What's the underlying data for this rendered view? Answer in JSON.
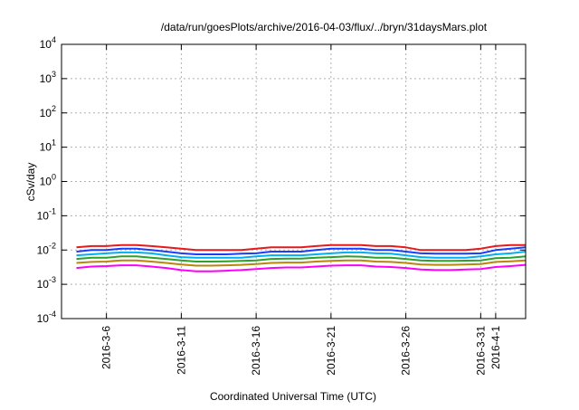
{
  "chart_data": {
    "type": "line",
    "title": "/data/run/goesPlots/archive/2016-04-03/flux/../bryn/31daysMars.plot",
    "xlabel": "Coordinated Universal Time (UTC)",
    "ylabel": "cSv/day",
    "y_scale": "log",
    "ylim": [
      0.0001,
      10000
    ],
    "xlim": [
      "2016-03-03",
      "2016-04-03"
    ],
    "grid": true,
    "legend": "none",
    "y_ticks": [
      {
        "base": "10",
        "exp": "-4"
      },
      {
        "base": "10",
        "exp": "-3"
      },
      {
        "base": "10",
        "exp": "-2"
      },
      {
        "base": "10",
        "exp": "-1"
      },
      {
        "base": "10",
        "exp": "0"
      },
      {
        "base": "10",
        "exp": "1"
      },
      {
        "base": "10",
        "exp": "2"
      },
      {
        "base": "10",
        "exp": "3"
      },
      {
        "base": "10",
        "exp": "4"
      }
    ],
    "x_ticks": [
      {
        "date": "2016-03-06",
        "label": "2016-3-6"
      },
      {
        "date": "2016-03-11",
        "label": "2016-3-11"
      },
      {
        "date": "2016-03-16",
        "label": "2016-3-16"
      },
      {
        "date": "2016-03-21",
        "label": "2016-3-21"
      },
      {
        "date": "2016-03-26",
        "label": "2016-3-26"
      },
      {
        "date": "2016-03-31",
        "label": "2016-3-31"
      },
      {
        "date": "2016-04-01",
        "label": "2016-4-1"
      }
    ],
    "x_dates": [
      "2016-03-04",
      "2016-03-05",
      "2016-03-06",
      "2016-03-07",
      "2016-03-08",
      "2016-03-09",
      "2016-03-10",
      "2016-03-11",
      "2016-03-12",
      "2016-03-13",
      "2016-03-14",
      "2016-03-15",
      "2016-03-16",
      "2016-03-17",
      "2016-03-18",
      "2016-03-19",
      "2016-03-20",
      "2016-03-21",
      "2016-03-22",
      "2016-03-23",
      "2016-03-24",
      "2016-03-25",
      "2016-03-26",
      "2016-03-27",
      "2016-03-28",
      "2016-03-29",
      "2016-03-30",
      "2016-03-31",
      "2016-04-01",
      "2016-04-02",
      "2016-04-03"
    ],
    "series": [
      {
        "color": "#e41a1c",
        "values": [
          0.012,
          0.013,
          0.013,
          0.014,
          0.014,
          0.013,
          0.012,
          0.011,
          0.01,
          0.01,
          0.01,
          0.01,
          0.011,
          0.012,
          0.012,
          0.012,
          0.013,
          0.014,
          0.014,
          0.014,
          0.013,
          0.013,
          0.012,
          0.01,
          0.01,
          0.01,
          0.01,
          0.011,
          0.013,
          0.014,
          0.014
        ]
      },
      {
        "color": "#1a3cff",
        "values": [
          0.009,
          0.01,
          0.01,
          0.011,
          0.011,
          0.01,
          0.009,
          0.008,
          0.0075,
          0.0075,
          0.0075,
          0.0078,
          0.008,
          0.009,
          0.009,
          0.009,
          0.01,
          0.011,
          0.011,
          0.011,
          0.01,
          0.01,
          0.009,
          0.008,
          0.0078,
          0.0078,
          0.0078,
          0.008,
          0.01,
          0.011,
          0.012
        ]
      },
      {
        "color": "#00b0f0",
        "values": [
          0.007,
          0.0075,
          0.008,
          0.0085,
          0.0085,
          0.008,
          0.007,
          0.0062,
          0.006,
          0.006,
          0.006,
          0.006,
          0.0065,
          0.007,
          0.007,
          0.007,
          0.0075,
          0.008,
          0.0085,
          0.0085,
          0.008,
          0.0078,
          0.007,
          0.0062,
          0.006,
          0.006,
          0.006,
          0.0065,
          0.0075,
          0.008,
          0.009
        ]
      },
      {
        "color": "#2ca02c",
        "values": [
          0.0055,
          0.006,
          0.006,
          0.0065,
          0.0065,
          0.006,
          0.0055,
          0.005,
          0.0046,
          0.0046,
          0.0047,
          0.0048,
          0.005,
          0.0055,
          0.0056,
          0.0056,
          0.006,
          0.0062,
          0.0065,
          0.0064,
          0.006,
          0.006,
          0.0055,
          0.005,
          0.0048,
          0.0048,
          0.0049,
          0.005,
          0.0058,
          0.006,
          0.0065
        ]
      },
      {
        "color": "#b8860b",
        "values": [
          0.0042,
          0.0045,
          0.0046,
          0.005,
          0.005,
          0.0046,
          0.0042,
          0.0038,
          0.0035,
          0.0035,
          0.0036,
          0.0037,
          0.0039,
          0.0042,
          0.0043,
          0.0043,
          0.0046,
          0.0048,
          0.005,
          0.005,
          0.0046,
          0.0045,
          0.0042,
          0.0038,
          0.0037,
          0.0037,
          0.0038,
          0.0039,
          0.0045,
          0.0047,
          0.005
        ]
      },
      {
        "color": "#ff00ff",
        "values": [
          0.003,
          0.0033,
          0.0034,
          0.0036,
          0.0036,
          0.0033,
          0.003,
          0.0026,
          0.0024,
          0.0024,
          0.0025,
          0.0026,
          0.0028,
          0.003,
          0.0031,
          0.0031,
          0.0033,
          0.0035,
          0.0036,
          0.0036,
          0.0033,
          0.0032,
          0.003,
          0.0027,
          0.0026,
          0.0026,
          0.0027,
          0.0028,
          0.0032,
          0.0034,
          0.0037
        ]
      }
    ]
  }
}
